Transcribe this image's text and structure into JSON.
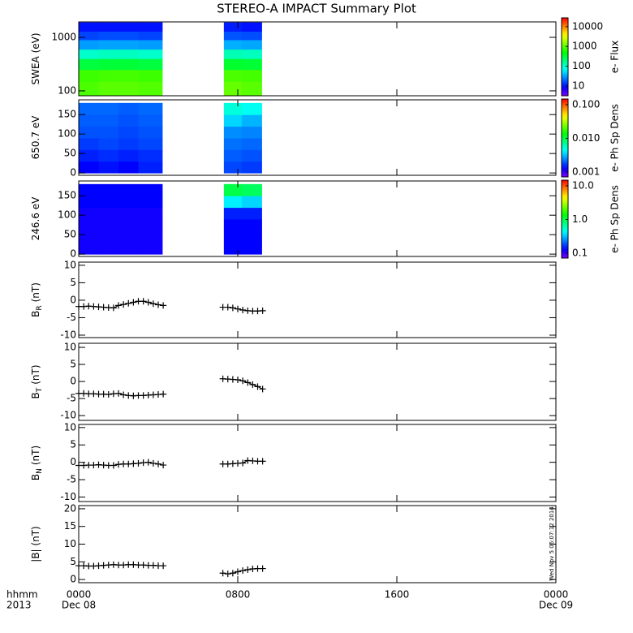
{
  "title": "STEREO-A IMPACT Summary Plot",
  "side_note": "Wed Nov  5 06:07:12 2014",
  "chart_data": [
    {
      "type": "heatmap",
      "ylabel": "SWEA (eV)",
      "ylog": true,
      "ylim": [
        81,
        1940
      ],
      "yticks": [
        100,
        1000
      ],
      "xlim": [
        0,
        24
      ],
      "xticks": [
        0,
        8,
        16,
        24
      ],
      "x_bins": [
        0,
        1,
        2,
        3,
        4.2,
        7.3,
        8.2,
        9.2
      ],
      "y_bins": [
        81,
        150,
        250,
        400,
        600,
        900,
        1300,
        1900
      ],
      "values": [
        [
          900,
          1000,
          1000,
          950,
          null,
          1100,
          1000
        ],
        [
          800,
          850,
          850,
          800,
          null,
          900,
          850
        ],
        [
          300,
          320,
          320,
          300,
          null,
          350,
          330
        ],
        [
          100,
          110,
          110,
          100,
          null,
          120,
          110
        ],
        [
          30,
          32,
          32,
          30,
          null,
          35,
          33
        ],
        [
          15,
          16,
          16,
          15,
          null,
          17,
          16
        ],
        [
          10,
          10,
          10,
          10,
          null,
          11,
          10
        ]
      ],
      "zlabel": "e- Flux",
      "zlog": true,
      "zlim": [
        3.2,
        28000
      ],
      "zticks": [
        10,
        100,
        1000,
        10000
      ]
    },
    {
      "type": "heatmap",
      "ylabel": "650.7 eV",
      "ylim": [
        -6,
        188
      ],
      "yticks": [
        0,
        50,
        100,
        150
      ],
      "xlim": [
        0,
        24
      ],
      "xticks": [
        0,
        8,
        16,
        24
      ],
      "x_bins": [
        0,
        1,
        2,
        3,
        4.2,
        7.3,
        8.2,
        9.2
      ],
      "y_bins": [
        0,
        30,
        60,
        90,
        120,
        150,
        180
      ],
      "values": [
        [
          0.0013,
          0.0014,
          0.0013,
          0.0015,
          null,
          0.0018,
          0.0017
        ],
        [
          0.0015,
          0.0016,
          0.0015,
          0.0016,
          null,
          0.002,
          0.0019
        ],
        [
          0.0017,
          0.0018,
          0.0017,
          0.0018,
          null,
          0.0022,
          0.0021
        ],
        [
          0.0019,
          0.0019,
          0.0018,
          0.0019,
          null,
          0.0025,
          0.0024
        ],
        [
          0.002,
          0.002,
          0.0019,
          0.002,
          null,
          0.0035,
          0.003
        ],
        [
          0.0021,
          0.0021,
          0.002,
          0.0021,
          null,
          0.005,
          0.0045
        ]
      ],
      "zlabel": "e- Ph Sp Dens",
      "zlog": true,
      "zlim": [
        0.00072,
        0.147
      ],
      "zticks": [
        {
          "value": 0.001,
          "label": "0.001"
        },
        {
          "value": 0.01,
          "label": "0.010"
        },
        {
          "value": 0.1,
          "label": "0.100"
        }
      ]
    },
    {
      "type": "heatmap",
      "ylabel": "246.6 eV",
      "ylim": [
        -6,
        188
      ],
      "yticks": [
        0,
        50,
        100,
        150
      ],
      "xlim": [
        0,
        24
      ],
      "xticks": [
        0,
        8,
        16,
        24
      ],
      "x_bins": [
        0,
        1,
        2,
        3,
        4.2,
        7.3,
        8.2,
        9.2
      ],
      "y_bins": [
        0,
        30,
        60,
        90,
        120,
        150,
        180
      ],
      "values": [
        [
          0.12,
          0.12,
          0.12,
          0.12,
          null,
          0.13,
          0.13
        ],
        [
          0.12,
          0.12,
          0.12,
          0.12,
          null,
          0.13,
          0.13
        ],
        [
          0.12,
          0.12,
          0.12,
          0.12,
          null,
          0.13,
          0.13
        ],
        [
          0.12,
          0.12,
          0.12,
          0.12,
          null,
          0.15,
          0.15
        ],
        [
          0.13,
          0.13,
          0.13,
          0.13,
          null,
          0.4,
          0.35
        ],
        [
          0.13,
          0.13,
          0.13,
          0.13,
          null,
          1.0,
          0.9
        ]
      ],
      "zlabel": "e- Ph Sp Dens",
      "zlog": true,
      "zlim": [
        0.072,
        14.7
      ],
      "zticks": [
        {
          "value": 0.1,
          "label": "0.1"
        },
        {
          "value": 1,
          "label": "1.0"
        },
        {
          "value": 10,
          "label": "10.0"
        }
      ]
    },
    {
      "type": "line",
      "ylabel": "B",
      "ylabel_sub": "R",
      "ylabel_unit": "(nT)",
      "ylim": [
        -10.7,
        10.9
      ],
      "yticks": [
        -10,
        -5,
        0,
        5,
        10
      ],
      "xlim": [
        0,
        24
      ],
      "xticks": [
        0,
        8,
        16,
        24
      ],
      "color": "#000000",
      "x": [
        0,
        0.25,
        0.5,
        0.75,
        1,
        1.25,
        1.5,
        1.75,
        2,
        2.25,
        2.5,
        2.75,
        3,
        3.25,
        3.5,
        3.75,
        4,
        4.25,
        6,
        7.25,
        7.5,
        7.75,
        8,
        8.25,
        8.5,
        8.75,
        9,
        9.25
      ],
      "values": [
        -1.8,
        -1.8,
        -1.7,
        -1.8,
        -1.9,
        -2,
        -2.1,
        -2.2,
        -1.5,
        -1.2,
        -0.9,
        -0.6,
        -0.3,
        -0.3,
        -0.6,
        -1,
        -1.3,
        -1.5,
        null,
        -2,
        -2,
        -2.2,
        -2.5,
        -2.8,
        -3,
        -3.1,
        -3.1,
        -3
      ]
    },
    {
      "type": "line",
      "ylabel": "B",
      "ylabel_sub": "T",
      "ylabel_unit": "(nT)",
      "ylim": [
        -11.4,
        11.2
      ],
      "yticks": [
        -10,
        -5,
        0,
        5,
        10
      ],
      "xlim": [
        0,
        24
      ],
      "xticks": [
        0,
        8,
        16,
        24
      ],
      "color": "#000000",
      "x": [
        0,
        0.25,
        0.5,
        0.75,
        1,
        1.25,
        1.5,
        1.75,
        2,
        2.25,
        2.5,
        2.75,
        3,
        3.25,
        3.5,
        3.75,
        4,
        4.25,
        6,
        7.25,
        7.5,
        7.75,
        8,
        8.25,
        8.5,
        8.75,
        9,
        9.25
      ],
      "values": [
        -3.5,
        -3.5,
        -3.6,
        -3.6,
        -3.7,
        -3.7,
        -3.8,
        -3.6,
        -3.5,
        -3.9,
        -4.1,
        -4.2,
        -4.1,
        -4.1,
        -4,
        -3.9,
        -3.8,
        -3.7,
        null,
        0.8,
        0.7,
        0.6,
        0.5,
        0.2,
        -0.3,
        -0.9,
        -1.5,
        -2.2
      ]
    },
    {
      "type": "line",
      "ylabel": "B",
      "ylabel_sub": "N",
      "ylabel_unit": "(nT)",
      "ylim": [
        -11.3,
        10.9
      ],
      "yticks": [
        -10,
        -5,
        0,
        5,
        10
      ],
      "xlim": [
        0,
        24
      ],
      "xticks": [
        0,
        8,
        16,
        24
      ],
      "color": "#000000",
      "x": [
        0,
        0.25,
        0.5,
        0.75,
        1,
        1.25,
        1.5,
        1.75,
        2,
        2.25,
        2.5,
        2.75,
        3,
        3.25,
        3.5,
        3.75,
        4,
        4.25,
        6,
        7.25,
        7.5,
        7.75,
        8,
        8.25,
        8.5,
        8.75,
        9,
        9.25
      ],
      "values": [
        -0.9,
        -0.9,
        -0.8,
        -0.8,
        -0.7,
        -0.8,
        -0.9,
        -0.9,
        -0.6,
        -0.5,
        -0.5,
        -0.4,
        -0.3,
        -0.1,
        0,
        -0.3,
        -0.5,
        -0.8,
        null,
        -0.5,
        -0.5,
        -0.4,
        -0.3,
        -0.2,
        0.5,
        0.4,
        0.3,
        0.3
      ]
    },
    {
      "type": "line",
      "ylabel": "|B| (nT)",
      "ylim": [
        -0.9,
        20.9
      ],
      "yticks": [
        0,
        5,
        10,
        15,
        20
      ],
      "xlim": [
        0,
        24
      ],
      "color": "#000000",
      "xticks": [
        {
          "value": 0,
          "label": "0000"
        },
        {
          "value": 8,
          "label": "0800"
        },
        {
          "value": 16,
          "label": "1600"
        },
        {
          "value": 24,
          "label": "0000"
        }
      ],
      "xlabel": "hhmm",
      "year": "2013",
      "dates": [
        {
          "value": 0,
          "label": "Dec 08"
        },
        {
          "value": 24,
          "label": "Dec 09"
        }
      ],
      "x": [
        0,
        0.25,
        0.5,
        0.75,
        1,
        1.25,
        1.5,
        1.75,
        2,
        2.25,
        2.5,
        2.75,
        3,
        3.25,
        3.5,
        3.75,
        4,
        4.25,
        6,
        7.25,
        7.5,
        7.75,
        8,
        8.25,
        8.5,
        8.75,
        9,
        9.25
      ],
      "values": [
        3.9,
        3.9,
        3.8,
        3.8,
        3.9,
        4,
        4.1,
        4.2,
        4.1,
        4.1,
        4.2,
        4.2,
        4.1,
        4.1,
        4,
        4,
        3.9,
        3.9,
        null,
        1.8,
        1.6,
        1.8,
        2.2,
        2.5,
        2.8,
        3,
        3.1,
        3.1
      ]
    }
  ]
}
